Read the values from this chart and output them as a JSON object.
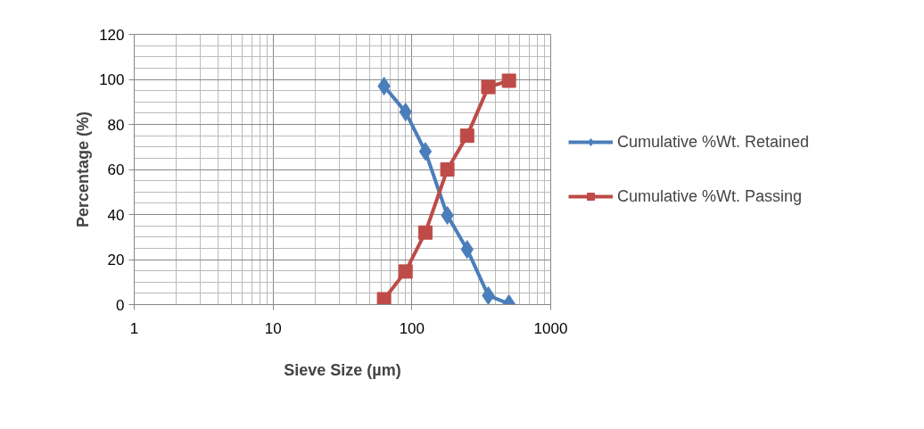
{
  "chart_data": {
    "type": "line",
    "xlabel": "Sieve Size (µm)",
    "ylabel": "Percentage (%)",
    "log": "x",
    "xlim": [
      1,
      1000
    ],
    "xticks": [
      1,
      10,
      100,
      1000
    ],
    "ylim": [
      0,
      120
    ],
    "yticks": [
      0,
      20,
      40,
      60,
      80,
      100,
      120
    ],
    "grid": true,
    "legend": "right",
    "line_style": "solid",
    "x": [
      63,
      90,
      125,
      180,
      250,
      355,
      500
    ],
    "series": [
      {
        "name": "Cumulative %Wt. Retained",
        "color": "#4a7ebb",
        "marker": "diamond",
        "values": [
          97,
          85.5,
          68,
          39.6,
          24.5,
          4,
          0.4
        ]
      },
      {
        "name": "Cumulative %Wt. Passing",
        "color": "#be4b48",
        "marker": "square",
        "values": [
          2.4,
          14.7,
          32,
          60,
          75,
          96.6,
          99.4
        ]
      }
    ]
  }
}
